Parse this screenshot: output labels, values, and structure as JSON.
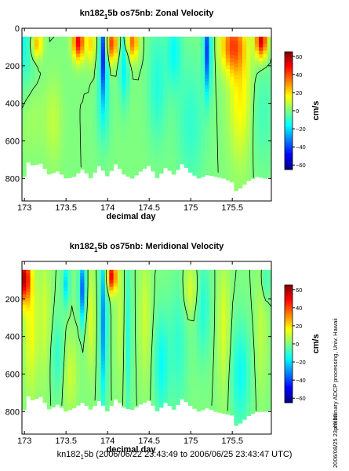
{
  "chart_data": [
    {
      "type": "heatmap",
      "title": "kn182_1 5b os75nb: Zonal Velocity",
      "title_main": "kn182",
      "title_sub": "1",
      "title_rest": "5b os75nb: Zonal Velocity",
      "xlabel": "decimal day",
      "ylabel": "",
      "xlim": [
        172.97,
        175.97
      ],
      "ylim": [
        920,
        0
      ],
      "x_ticks": [
        173,
        173.5,
        174,
        174.5,
        175,
        175.5
      ],
      "x_tick_labels": [
        "173",
        "173.5",
        "174",
        "174.5",
        "175",
        "175.5"
      ],
      "y_ticks": [
        0,
        200,
        400,
        600,
        800
      ],
      "y_tick_labels": [
        "0",
        "200",
        "400",
        "600",
        "800"
      ],
      "colorbar_label": "cm/s",
      "colorbar_range": [
        -65,
        65
      ],
      "colorbar_ticks": [
        60,
        40,
        20,
        0,
        -20,
        -40,
        -60
      ],
      "colorbar_tick_labels": [
        "60",
        "40",
        "20",
        "0",
        "−20",
        "−40",
        "−60"
      ],
      "depth_top": 45,
      "contour_levels": [
        0
      ],
      "depth_profile": [
        [
          173.0,
          700
        ],
        [
          173.1,
          730
        ],
        [
          173.2,
          720
        ],
        [
          173.3,
          780
        ],
        [
          173.4,
          760
        ],
        [
          173.5,
          800
        ],
        [
          173.6,
          790
        ],
        [
          173.7,
          750
        ],
        [
          173.8,
          800
        ],
        [
          173.9,
          730
        ],
        [
          174.0,
          790
        ],
        [
          174.1,
          720
        ],
        [
          174.2,
          780
        ],
        [
          174.3,
          800
        ],
        [
          174.4,
          760
        ],
        [
          174.5,
          730
        ],
        [
          174.6,
          800
        ],
        [
          174.7,
          740
        ],
        [
          174.8,
          780
        ],
        [
          174.9,
          720
        ],
        [
          175.0,
          770
        ],
        [
          175.1,
          800
        ],
        [
          175.2,
          780
        ],
        [
          175.3,
          790
        ],
        [
          175.4,
          800
        ],
        [
          175.5,
          820
        ],
        [
          175.55,
          870
        ],
        [
          175.6,
          850
        ],
        [
          175.7,
          810
        ],
        [
          175.8,
          790
        ],
        [
          175.9,
          800
        ],
        [
          175.97,
          790
        ]
      ],
      "features": [
        {
          "x": 173.0,
          "d": 100,
          "sx": 0.12,
          "sd": 300,
          "v": -15
        },
        {
          "x": 173.05,
          "d": 420,
          "sx": 0.12,
          "sd": 180,
          "v": 10
        },
        {
          "x": 173.15,
          "d": 80,
          "sx": 0.05,
          "sd": 60,
          "v": 30
        },
        {
          "x": 173.35,
          "d": 500,
          "sx": 0.07,
          "sd": 160,
          "v": 8
        },
        {
          "x": 173.65,
          "d": 70,
          "sx": 0.05,
          "sd": 70,
          "v": 50
        },
        {
          "x": 173.8,
          "d": 80,
          "sx": 0.04,
          "sd": 80,
          "v": 20
        },
        {
          "x": 173.95,
          "d": 130,
          "sx": 0.03,
          "sd": 170,
          "v": -45
        },
        {
          "x": 173.95,
          "d": 450,
          "sx": 0.06,
          "sd": 150,
          "v": -10
        },
        {
          "x": 174.05,
          "d": 80,
          "sx": 0.05,
          "sd": 70,
          "v": 40
        },
        {
          "x": 174.2,
          "d": 200,
          "sx": 0.04,
          "sd": 150,
          "v": -18
        },
        {
          "x": 174.3,
          "d": 70,
          "sx": 0.05,
          "sd": 70,
          "v": 35
        },
        {
          "x": 174.6,
          "d": 300,
          "sx": 0.08,
          "sd": 220,
          "v": -12
        },
        {
          "x": 174.8,
          "d": 120,
          "sx": 0.06,
          "sd": 140,
          "v": -15
        },
        {
          "x": 175.0,
          "d": 500,
          "sx": 0.12,
          "sd": 250,
          "v": -10
        },
        {
          "x": 175.2,
          "d": 120,
          "sx": 0.03,
          "sd": 160,
          "v": -40
        },
        {
          "x": 175.5,
          "d": 90,
          "sx": 0.1,
          "sd": 100,
          "v": 35
        },
        {
          "x": 175.6,
          "d": 350,
          "sx": 0.1,
          "sd": 250,
          "v": 18
        },
        {
          "x": 175.85,
          "d": 60,
          "sx": 0.05,
          "sd": 70,
          "v": 55
        },
        {
          "x": 175.85,
          "d": 450,
          "sx": 0.1,
          "sd": 200,
          "v": -8
        }
      ]
    },
    {
      "type": "heatmap",
      "title": "kn182_1 5b os75nb: Meridional Velocity",
      "title_main": "kn182",
      "title_sub": "1",
      "title_rest": "5b os75nb: Meridional Velocity",
      "xlabel": "decimal day",
      "ylabel": "",
      "xlim": [
        172.97,
        175.97
      ],
      "ylim": [
        920,
        0
      ],
      "x_ticks": [
        173,
        173.5,
        174,
        174.5,
        175,
        175.5
      ],
      "x_tick_labels": [
        "173",
        "173.5",
        "174",
        "174.5",
        "175",
        "175.5"
      ],
      "y_ticks": [
        200,
        400,
        600,
        800
      ],
      "y_tick_labels": [
        "200",
        "400",
        "600",
        "800"
      ],
      "colorbar_label": "cm/s",
      "colorbar_range": [
        -65,
        65
      ],
      "colorbar_ticks": [
        60,
        40,
        20,
        0,
        -20,
        -40,
        -60
      ],
      "colorbar_tick_labels": [
        "60",
        "40",
        "20",
        "0",
        "−20",
        "−40",
        "−60"
      ],
      "depth_top": 45,
      "contour_levels": [
        0
      ],
      "depth_profile": [
        [
          173.0,
          700
        ],
        [
          173.1,
          740
        ],
        [
          173.2,
          720
        ],
        [
          173.3,
          790
        ],
        [
          173.4,
          760
        ],
        [
          173.5,
          800
        ],
        [
          173.6,
          780
        ],
        [
          173.7,
          750
        ],
        [
          173.8,
          790
        ],
        [
          173.9,
          740
        ],
        [
          174.0,
          800
        ],
        [
          174.1,
          730
        ],
        [
          174.2,
          780
        ],
        [
          174.3,
          790
        ],
        [
          174.4,
          760
        ],
        [
          174.5,
          740
        ],
        [
          174.6,
          800
        ],
        [
          174.7,
          750
        ],
        [
          174.8,
          790
        ],
        [
          174.9,
          730
        ],
        [
          175.0,
          770
        ],
        [
          175.1,
          800
        ],
        [
          175.2,
          780
        ],
        [
          175.3,
          800
        ],
        [
          175.4,
          810
        ],
        [
          175.5,
          820
        ],
        [
          175.55,
          880
        ],
        [
          175.6,
          860
        ],
        [
          175.7,
          820
        ],
        [
          175.8,
          800
        ],
        [
          175.9,
          800
        ],
        [
          175.97,
          790
        ]
      ],
      "features": [
        {
          "x": 173.0,
          "d": 90,
          "sx": 0.05,
          "sd": 90,
          "v": 55
        },
        {
          "x": 173.08,
          "d": 350,
          "sx": 0.06,
          "sd": 250,
          "v": 15
        },
        {
          "x": 173.25,
          "d": 300,
          "sx": 0.05,
          "sd": 250,
          "v": 10
        },
        {
          "x": 173.4,
          "d": 500,
          "sx": 0.06,
          "sd": 150,
          "v": -10
        },
        {
          "x": 173.5,
          "d": 120,
          "sx": 0.03,
          "sd": 80,
          "v": -20
        },
        {
          "x": 173.55,
          "d": 600,
          "sx": 0.06,
          "sd": 150,
          "v": 10
        },
        {
          "x": 173.7,
          "d": 150,
          "sx": 0.03,
          "sd": 120,
          "v": -35
        },
        {
          "x": 173.8,
          "d": 300,
          "sx": 0.04,
          "sd": 200,
          "v": 12
        },
        {
          "x": 173.95,
          "d": 320,
          "sx": 0.03,
          "sd": 300,
          "v": -30
        },
        {
          "x": 174.05,
          "d": 80,
          "sx": 0.04,
          "sd": 60,
          "v": 50
        },
        {
          "x": 174.15,
          "d": 300,
          "sx": 0.04,
          "sd": 250,
          "v": 8
        },
        {
          "x": 174.25,
          "d": 400,
          "sx": 0.03,
          "sd": 300,
          "v": -12
        },
        {
          "x": 174.45,
          "d": 300,
          "sx": 0.05,
          "sd": 250,
          "v": 10
        },
        {
          "x": 174.65,
          "d": 550,
          "sx": 0.06,
          "sd": 200,
          "v": -15
        },
        {
          "x": 174.85,
          "d": 450,
          "sx": 0.08,
          "sd": 250,
          "v": -10
        },
        {
          "x": 175.0,
          "d": 150,
          "sx": 0.06,
          "sd": 100,
          "v": 12
        },
        {
          "x": 175.15,
          "d": 250,
          "sx": 0.06,
          "sd": 200,
          "v": -12
        },
        {
          "x": 175.4,
          "d": 350,
          "sx": 0.05,
          "sd": 250,
          "v": 12
        },
        {
          "x": 175.6,
          "d": 600,
          "sx": 0.08,
          "sd": 200,
          "v": -15
        },
        {
          "x": 175.85,
          "d": 350,
          "sx": 0.05,
          "sd": 250,
          "v": 8
        },
        {
          "x": 175.9,
          "d": 100,
          "sx": 0.04,
          "sd": 80,
          "v": -10
        }
      ]
    }
  ],
  "footer": {
    "prefix": "kn182",
    "sub": "1",
    "suffix": "5b (2006/06/22 23:43:49 to 2006/06/25 23:43:47 UTC)"
  },
  "side_notes": {
    "processing": "preliminary ADCP processing,   Univ. Hawaii",
    "timestamp": "2006/08/25 23:49:53"
  }
}
